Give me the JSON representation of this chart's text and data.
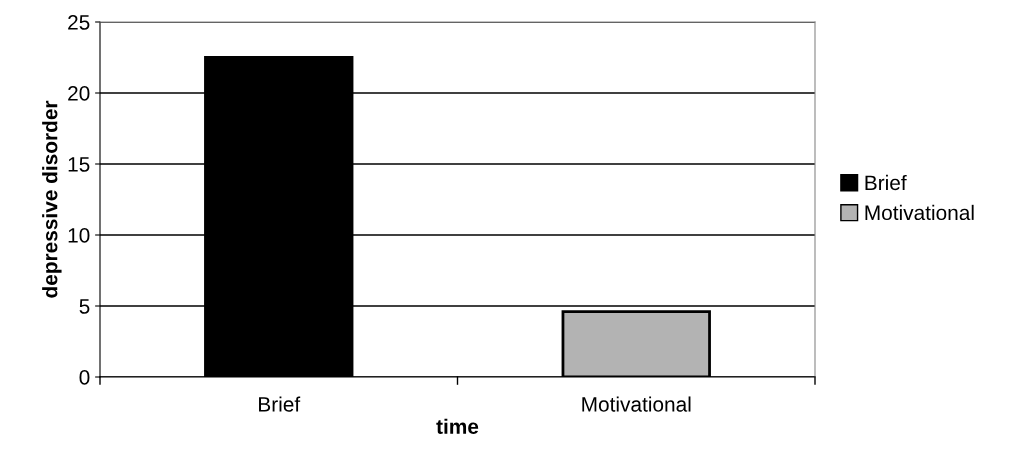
{
  "chart_data": {
    "type": "bar",
    "xlabel": "time",
    "ylabel": "depressive disorder",
    "categories": [
      "Brief",
      "Motivational"
    ],
    "series": [
      {
        "name": "Brief",
        "color": "#000000",
        "values": [
          22.5,
          null
        ]
      },
      {
        "name": "Motivational",
        "color": "#b3b3b3",
        "values": [
          null,
          4.6
        ]
      }
    ],
    "ylim": [
      0,
      25
    ],
    "yticks": [
      0,
      5,
      10,
      15,
      20,
      25
    ],
    "grid": "y",
    "legend": "right"
  }
}
